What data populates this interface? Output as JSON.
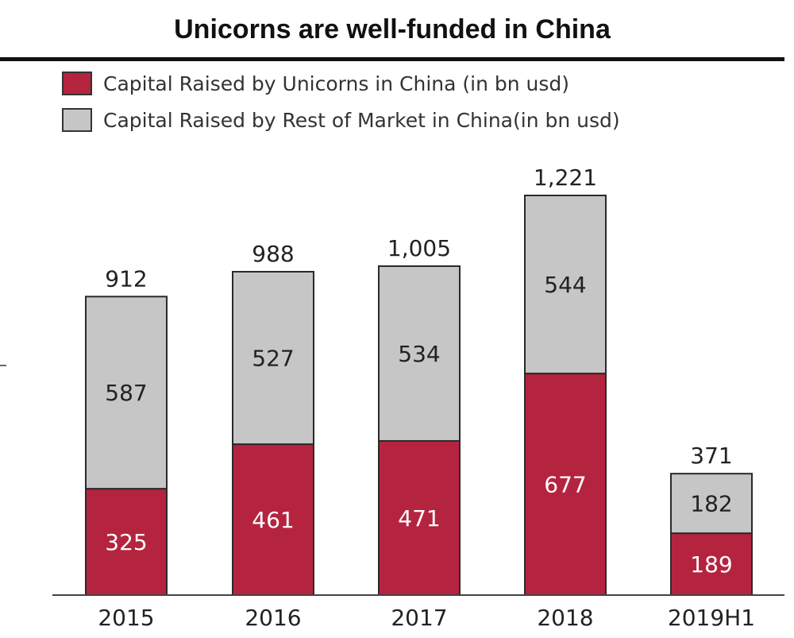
{
  "chart_data": {
    "type": "bar",
    "stacked": true,
    "title": "Unicorns are well-funded in China",
    "categories": [
      "2015",
      "2016",
      "2017",
      "2018",
      "2019H1"
    ],
    "series": [
      {
        "name": "Capital Raised by Unicorns in China (in bn usd)",
        "values": [
          325,
          461,
          471,
          677,
          189
        ],
        "color": "#b5243f",
        "label_color": "#ffffff"
      },
      {
        "name": "Capital Raised by Rest of Market in China(in bn usd)",
        "values": [
          587,
          527,
          534,
          544,
          182
        ],
        "color": "#c6c6c6",
        "label_color": "#222222"
      }
    ],
    "totals": [
      "912",
      "988",
      "1,005",
      "1,221",
      "371"
    ],
    "ylim": [
      0,
      1221
    ],
    "legend_position": "top-left",
    "grid": false
  }
}
